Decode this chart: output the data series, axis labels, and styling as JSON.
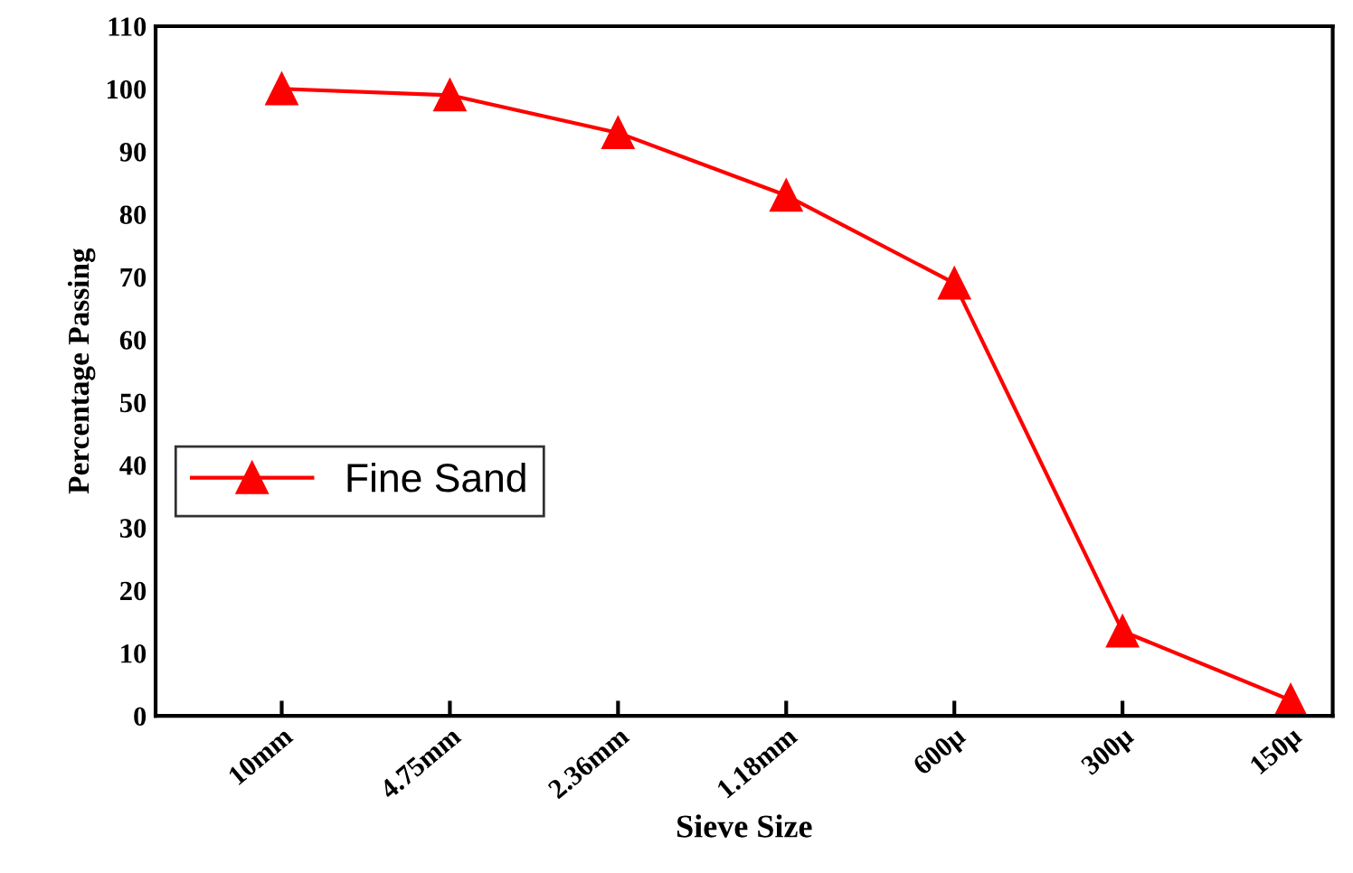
{
  "chart_data": {
    "type": "line",
    "xlabel": "Sieve Size",
    "ylabel": "Percentage Passing",
    "categories": [
      "10mm",
      "4.75mm",
      "2.36mm",
      "1.18mm",
      "600μ",
      "300μ",
      "150μ"
    ],
    "series": [
      {
        "name": "Fine Sand",
        "color": "#ff0000",
        "values": [
          100,
          99,
          93,
          83,
          69,
          13.5,
          2.5
        ]
      }
    ],
    "ylim": [
      0,
      110
    ],
    "yticks": [
      0,
      10,
      20,
      30,
      40,
      50,
      60,
      70,
      80,
      90,
      100,
      110
    ],
    "marker": "triangle",
    "line_style": "solid",
    "legend": "center left",
    "grid": false
  }
}
